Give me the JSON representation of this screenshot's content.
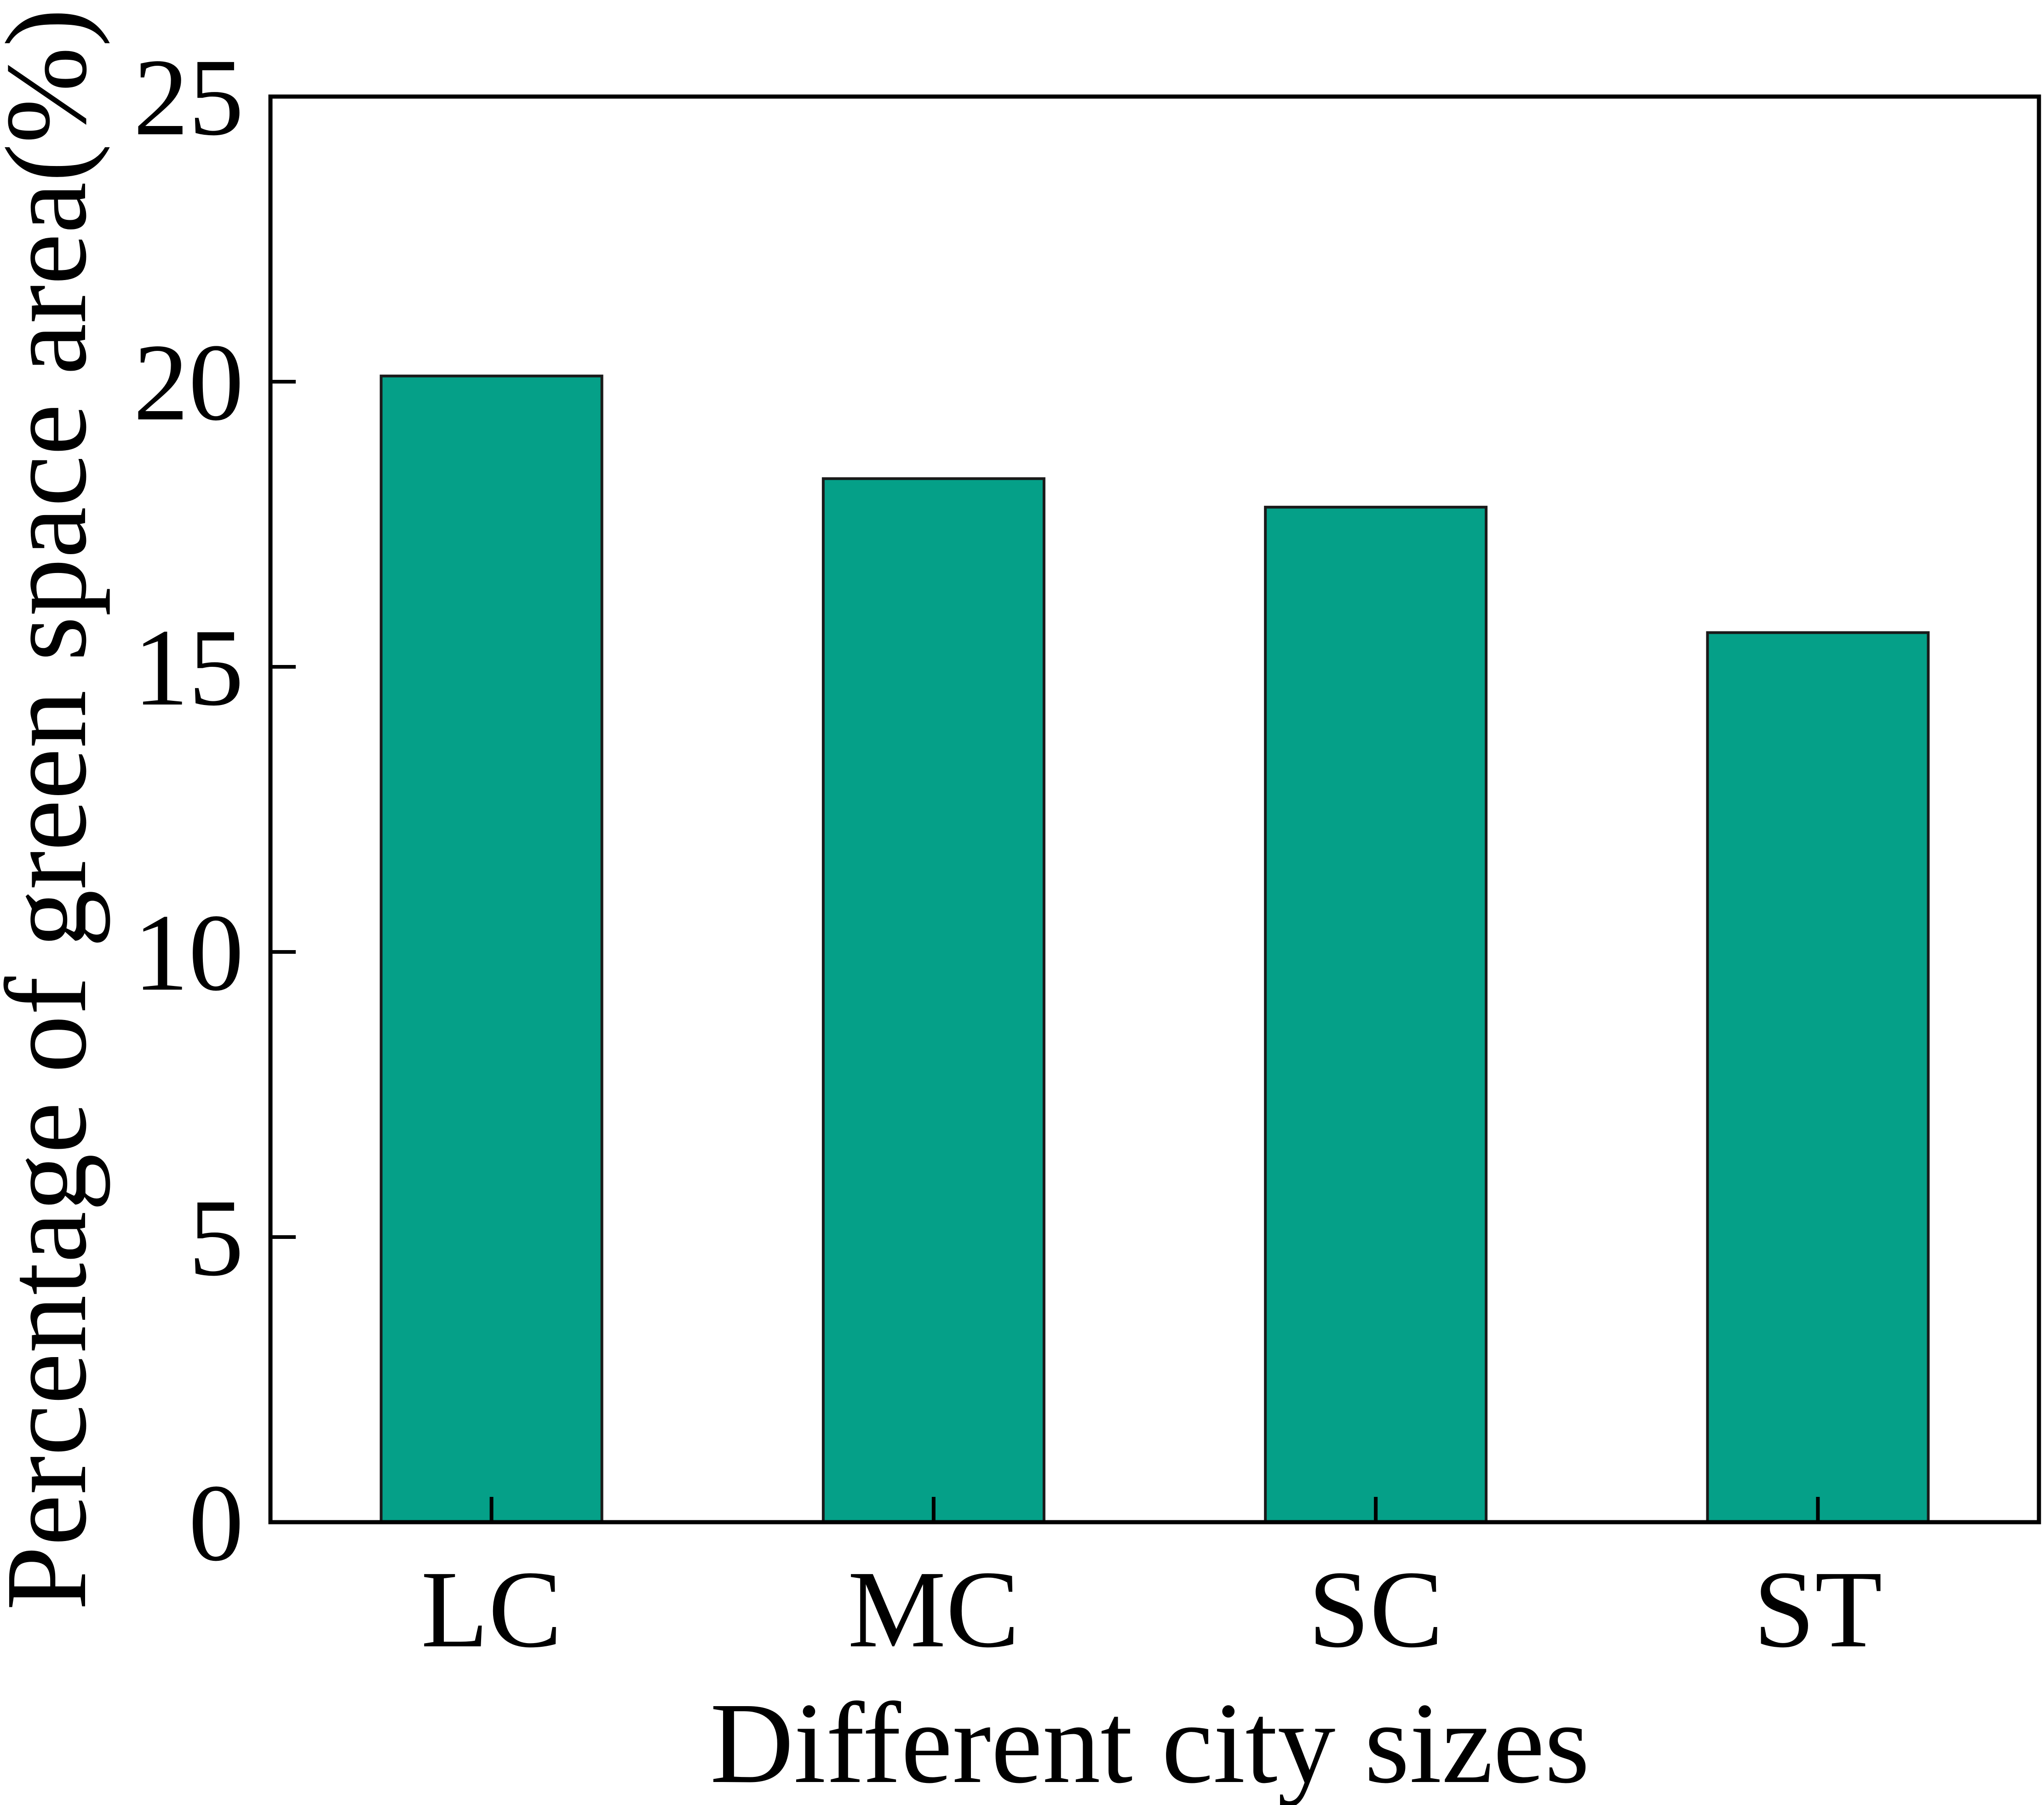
{
  "chart_data": {
    "type": "bar",
    "categories": [
      "LC",
      "MC",
      "SC",
      "ST"
    ],
    "values": [
      20.1,
      18.3,
      17.8,
      15.6
    ],
    "xlabel": "Different city sizes",
    "ylabel": "Percentage of green space area(%)",
    "ylim": [
      0,
      25
    ],
    "yticks": [
      "0",
      "5",
      "10",
      "15",
      "20",
      "25"
    ],
    "grid": false,
    "legend": "none",
    "bar_color": "#05A088",
    "bar_edge_color": "#1a1a1a",
    "axis_color": "#000000"
  }
}
